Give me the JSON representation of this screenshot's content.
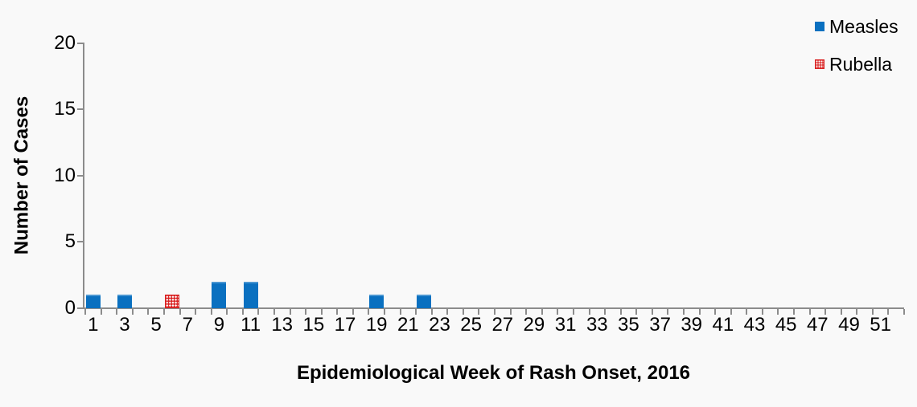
{
  "y_axis": {
    "title": "Number of Cases",
    "tick_labels": [
      "0",
      "5",
      "10",
      "15",
      "20"
    ]
  },
  "x_axis": {
    "title": "Epidemiological Week of Rash Onset, 2016",
    "tick_labels": [
      "1",
      "3",
      "5",
      "7",
      "9",
      "11",
      "13",
      "15",
      "17",
      "19",
      "21",
      "23",
      "25",
      "27",
      "29",
      "31",
      "33",
      "35",
      "37",
      "39",
      "41",
      "43",
      "45",
      "47",
      "49",
      "51"
    ]
  },
  "legend": {
    "items": [
      {
        "label": "Measles",
        "swatch": "solid-blue-square"
      },
      {
        "label": "Rubella",
        "swatch": "red-dotted-square"
      }
    ]
  },
  "colors": {
    "measles_blue": "#0a70c0",
    "measles_blue_highlight": "#4a96d2",
    "rubella_red": "#d92121",
    "axis_gray": "#8c8c8c",
    "text_black": "#000000",
    "background": "#f9f9f9"
  },
  "chart_data": {
    "type": "bar",
    "title": "",
    "xlabel": "Epidemiological Week of Rash Onset, 2016",
    "ylabel": "Number of Cases",
    "x_range": [
      1,
      52
    ],
    "ylim": [
      0,
      20
    ],
    "y_ticks": [
      0,
      5,
      10,
      15,
      20
    ],
    "x_tick_labels": [
      1,
      3,
      5,
      7,
      9,
      11,
      13,
      15,
      17,
      19,
      21,
      23,
      25,
      27,
      29,
      31,
      33,
      35,
      37,
      39,
      41,
      43,
      45,
      47,
      49,
      51
    ],
    "grid": false,
    "legend_position": "top-right",
    "series": [
      {
        "name": "Measles",
        "color": "#0a70c0",
        "pattern": "solid",
        "points": [
          {
            "week": 1,
            "cases": 1
          },
          {
            "week": 3,
            "cases": 1
          },
          {
            "week": 9,
            "cases": 2
          },
          {
            "week": 11,
            "cases": 2
          },
          {
            "week": 19,
            "cases": 1
          },
          {
            "week": 22,
            "cases": 1
          }
        ]
      },
      {
        "name": "Rubella",
        "color": "#d92121",
        "pattern": "dotted",
        "points": [
          {
            "week": 6,
            "cases": 1
          }
        ]
      }
    ]
  }
}
